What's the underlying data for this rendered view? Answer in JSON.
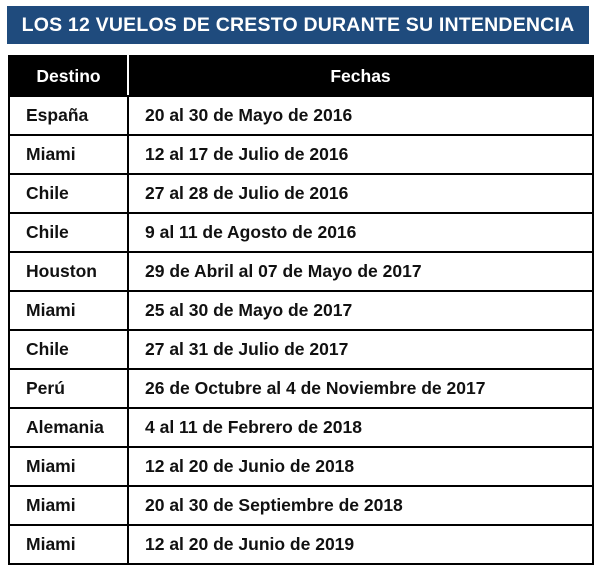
{
  "title": "LOS 12 VUELOS DE CRESTO DURANTE SU INTENDENCIA",
  "header": {
    "destino": "Destino",
    "fechas": "Fechas"
  },
  "colors": {
    "banner": "#1f4b7d",
    "header_bg": "#000000",
    "header_text": "#ffffff"
  },
  "rows": [
    {
      "destino": "España",
      "fechas": "20 al 30 de Mayo de 2016"
    },
    {
      "destino": "Miami",
      "fechas": "12 al 17 de Julio de 2016"
    },
    {
      "destino": "Chile",
      "fechas": "27 al 28 de Julio de 2016"
    },
    {
      "destino": "Chile",
      "fechas": "9 al 11 de Agosto de 2016"
    },
    {
      "destino": "Houston",
      "fechas": "29 de Abril al 07 de Mayo de 2017"
    },
    {
      "destino": "Miami",
      "fechas": "25 al 30 de Mayo de 2017"
    },
    {
      "destino": "Chile",
      "fechas": "27 al 31 de Julio de 2017"
    },
    {
      "destino": "Perú",
      "fechas": "26 de Octubre al 4 de Noviembre de 2017"
    },
    {
      "destino": "Alemania",
      "fechas": "4 al 11 de Febrero de 2018"
    },
    {
      "destino": "Miami",
      "fechas": "12 al 20 de Junio de 2018"
    },
    {
      "destino": "Miami",
      "fechas": "20 al 30 de Septiembre de 2018"
    },
    {
      "destino": "Miami",
      "fechas": "12 al 20 de Junio de 2019"
    }
  ]
}
